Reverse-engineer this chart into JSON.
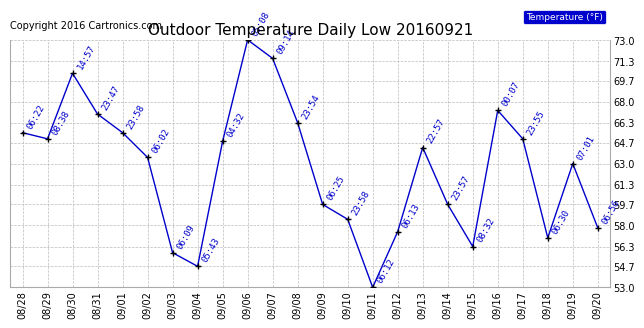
{
  "title": "Outdoor Temperature Daily Low 20160921",
  "copyright": "Copyright 2016 Cartronics.com",
  "legend_label": "Temperature (°F)",
  "xlabels": [
    "08/28",
    "08/29",
    "08/30",
    "08/31",
    "09/01",
    "09/02",
    "09/03",
    "09/04",
    "09/05",
    "09/06",
    "09/07",
    "09/08",
    "09/09",
    "09/10",
    "09/11",
    "09/12",
    "09/13",
    "09/14",
    "09/15",
    "09/16",
    "09/17",
    "09/18",
    "09/19",
    "09/20"
  ],
  "point_labels": [
    "06:22",
    "08:38",
    "14:57",
    "23:47",
    "23:58",
    "06:02",
    "06:09",
    "05:43",
    "04:32",
    "05:08",
    "09:14",
    "23:54",
    "06:25",
    "23:58",
    "06:12",
    "06:13",
    "22:57",
    "23:57",
    "08:32",
    "00:07",
    "23:55",
    "06:30",
    "07:01",
    "06:56"
  ],
  "values": [
    65.5,
    65.0,
    70.3,
    67.0,
    65.5,
    63.5,
    55.8,
    54.7,
    64.8,
    73.0,
    71.5,
    66.3,
    59.7,
    58.5,
    53.0,
    57.5,
    64.3,
    59.7,
    56.3,
    67.3,
    65.0,
    57.0,
    63.0,
    57.8
  ],
  "ylim": [
    53.0,
    73.0
  ],
  "yticks": [
    53.0,
    54.7,
    56.3,
    58.0,
    59.7,
    61.3,
    63.0,
    64.7,
    66.3,
    68.0,
    69.7,
    71.3,
    73.0
  ],
  "line_color": "#0000cc",
  "marker_color": "#000000",
  "label_color": "#0000cc",
  "bg_color": "#ffffff",
  "grid_color": "#bbbbbb",
  "title_fontsize": 11,
  "label_fontsize": 6.5,
  "tick_fontsize": 7,
  "copyright_fontsize": 7
}
